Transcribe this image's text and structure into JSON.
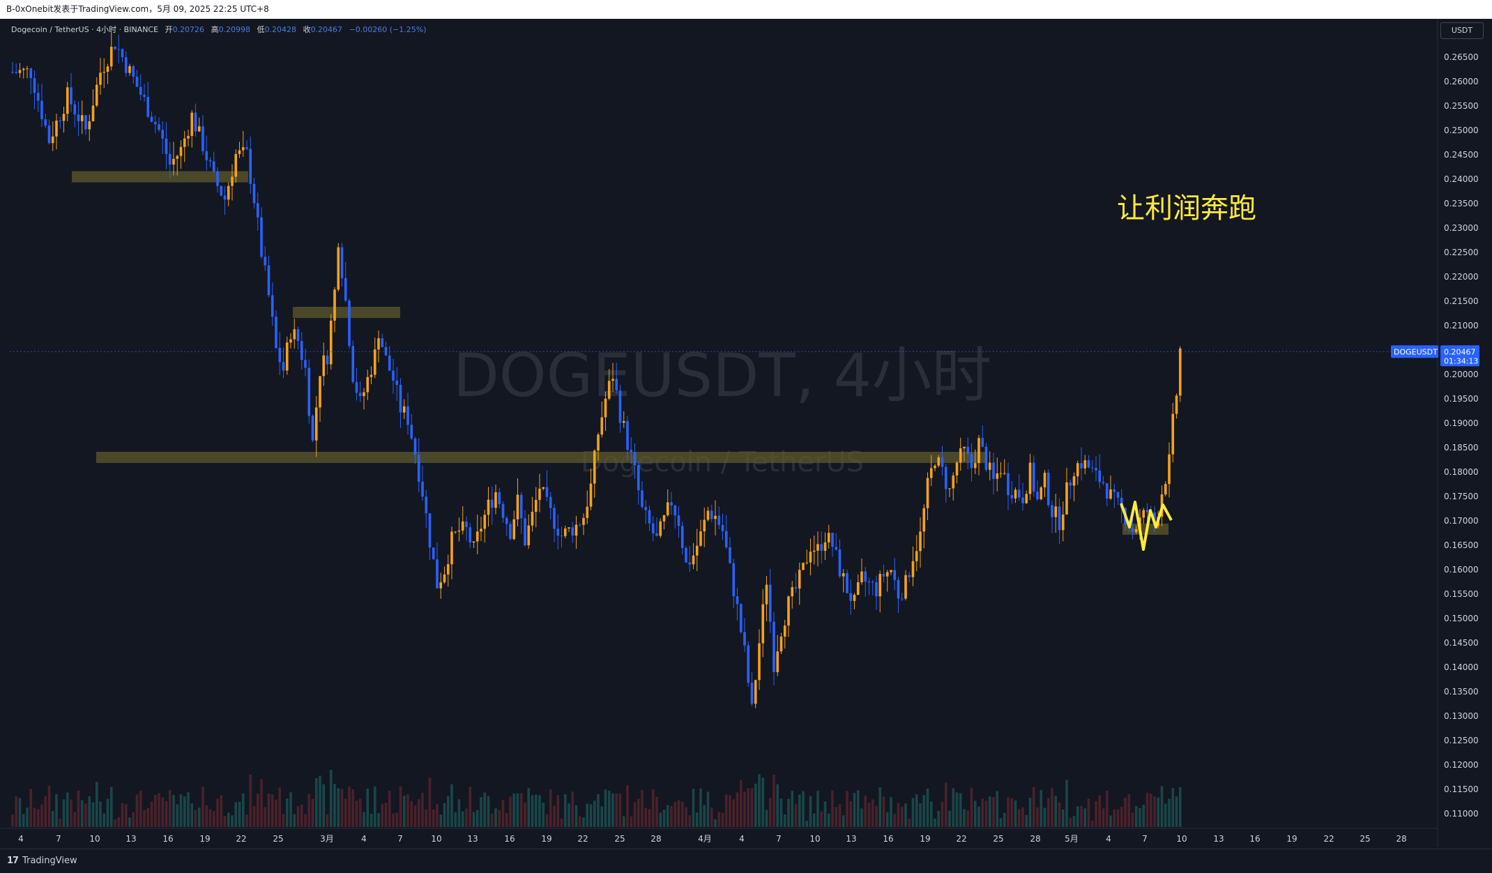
{
  "header": {
    "text": "B-0xOnebit发表于TradingView.com，5月 09, 2025 22:25 UTC+8"
  },
  "legend": {
    "symbol": "Dogecoin / TetherUS · 4小时 · BINANCE",
    "open_label": "开",
    "open": "0.20726",
    "high_label": "高",
    "high": "0.20998",
    "low_label": "低",
    "low": "0.20428",
    "close_label": "收",
    "close": "0.20467",
    "change": "−0.00260 (−1.25%)"
  },
  "currency": "USDT",
  "watermark": {
    "line1": "DOGEUSDT, 4小时",
    "line2": "Dogecoin / TetherUS"
  },
  "annotation": {
    "text": "让利润奔跑"
  },
  "current_price": {
    "symbol": "DOGEUSDT",
    "price": "0.20467",
    "countdown": "01:34:13"
  },
  "footer": {
    "brand": "TradingView"
  },
  "colors": {
    "up": "#f7a21b",
    "down": "#2962ff",
    "background": "#131722",
    "zone": "#5d5a2c",
    "annotation": "#ffeb3b"
  },
  "chart_data": {
    "type": "candlestick",
    "symbol": "DOGEUSDT",
    "interval": "4小时",
    "exchange": "BINANCE",
    "ylim": [
      0.1075,
      0.2695
    ],
    "y_ticks": [
      "0.26500",
      "0.26000",
      "0.25500",
      "0.25000",
      "0.24500",
      "0.24000",
      "0.23500",
      "0.23000",
      "0.22500",
      "0.22000",
      "0.21500",
      "0.21000",
      "0.20500",
      "0.20000",
      "0.19500",
      "0.19000",
      "0.18500",
      "0.18000",
      "0.17500",
      "0.17000",
      "0.16500",
      "0.16000",
      "0.15500",
      "0.15000",
      "0.14500",
      "0.14000",
      "0.13500",
      "0.13000",
      "0.12500",
      "0.12000",
      "0.11500",
      "0.11000"
    ],
    "x_ticks": [
      "4",
      "7",
      "10",
      "13",
      "16",
      "19",
      "22",
      "25",
      "3月",
      "4",
      "7",
      "10",
      "13",
      "16",
      "19",
      "22",
      "25",
      "28",
      "4月",
      "4",
      "7",
      "10",
      "13",
      "16",
      "19",
      "22",
      "25",
      "28",
      "5月",
      "4",
      "7",
      "10",
      "13",
      "16",
      "19",
      "22",
      "25",
      "28"
    ],
    "price_path": [
      [
        0,
        0.262
      ],
      [
        5,
        0.262
      ],
      [
        10,
        0.248
      ],
      [
        15,
        0.257
      ],
      [
        20,
        0.25
      ],
      [
        24,
        0.262
      ],
      [
        28,
        0.268
      ],
      [
        32,
        0.262
      ],
      [
        36,
        0.256
      ],
      [
        40,
        0.25
      ],
      [
        43,
        0.243
      ],
      [
        46,
        0.246
      ],
      [
        49,
        0.253
      ],
      [
        52,
        0.247
      ],
      [
        55,
        0.24
      ],
      [
        58,
        0.236
      ],
      [
        61,
        0.245
      ],
      [
        64,
        0.245
      ],
      [
        66,
        0.236
      ],
      [
        68,
        0.225
      ],
      [
        70,
        0.216
      ],
      [
        72,
        0.205
      ],
      [
        74,
        0.201
      ],
      [
        76,
        0.209
      ],
      [
        78,
        0.207
      ],
      [
        80,
        0.201
      ],
      [
        82,
        0.186
      ],
      [
        84,
        0.201
      ],
      [
        86,
        0.204
      ],
      [
        88,
        0.217
      ],
      [
        89,
        0.228
      ],
      [
        91,
        0.215
      ],
      [
        93,
        0.2
      ],
      [
        95,
        0.194
      ],
      [
        97,
        0.199
      ],
      [
        99,
        0.204
      ],
      [
        100,
        0.209
      ],
      [
        102,
        0.203
      ],
      [
        104,
        0.199
      ],
      [
        106,
        0.193
      ],
      [
        108,
        0.191
      ],
      [
        110,
        0.184
      ],
      [
        112,
        0.176
      ],
      [
        114,
        0.166
      ],
      [
        116,
        0.157
      ],
      [
        118,
        0.16
      ],
      [
        120,
        0.166
      ],
      [
        122,
        0.168
      ],
      [
        124,
        0.168
      ],
      [
        126,
        0.164
      ],
      [
        128,
        0.169
      ],
      [
        130,
        0.173
      ],
      [
        132,
        0.176
      ],
      [
        134,
        0.172
      ],
      [
        136,
        0.168
      ],
      [
        138,
        0.174
      ],
      [
        140,
        0.166
      ],
      [
        142,
        0.171
      ],
      [
        144,
        0.177
      ],
      [
        146,
        0.173
      ],
      [
        148,
        0.17
      ],
      [
        150,
        0.167
      ],
      [
        152,
        0.168
      ],
      [
        154,
        0.169
      ],
      [
        156,
        0.171
      ],
      [
        158,
        0.177
      ],
      [
        160,
        0.188
      ],
      [
        162,
        0.195
      ],
      [
        164,
        0.2
      ],
      [
        166,
        0.192
      ],
      [
        168,
        0.186
      ],
      [
        170,
        0.18
      ],
      [
        172,
        0.172
      ],
      [
        174,
        0.169
      ],
      [
        176,
        0.166
      ],
      [
        178,
        0.17
      ],
      [
        180,
        0.174
      ],
      [
        182,
        0.17
      ],
      [
        184,
        0.161
      ],
      [
        186,
        0.163
      ],
      [
        188,
        0.167
      ],
      [
        190,
        0.172
      ],
      [
        192,
        0.171
      ],
      [
        194,
        0.168
      ],
      [
        196,
        0.16
      ],
      [
        198,
        0.152
      ],
      [
        200,
        0.143
      ],
      [
        202,
        0.131
      ],
      [
        204,
        0.145
      ],
      [
        206,
        0.158
      ],
      [
        208,
        0.141
      ],
      [
        210,
        0.148
      ],
      [
        212,
        0.153
      ],
      [
        214,
        0.156
      ],
      [
        216,
        0.16
      ],
      [
        218,
        0.165
      ],
      [
        220,
        0.164
      ],
      [
        222,
        0.167
      ],
      [
        224,
        0.165
      ],
      [
        226,
        0.16
      ],
      [
        228,
        0.156
      ],
      [
        230,
        0.153
      ],
      [
        232,
        0.158
      ],
      [
        234,
        0.157
      ],
      [
        236,
        0.156
      ],
      [
        238,
        0.159
      ],
      [
        240,
        0.16
      ],
      [
        242,
        0.155
      ],
      [
        244,
        0.157
      ],
      [
        246,
        0.163
      ],
      [
        248,
        0.167
      ],
      [
        250,
        0.177
      ],
      [
        252,
        0.183
      ],
      [
        254,
        0.18
      ],
      [
        256,
        0.176
      ],
      [
        258,
        0.182
      ],
      [
        260,
        0.184
      ],
      [
        262,
        0.181
      ],
      [
        264,
        0.186
      ],
      [
        266,
        0.182
      ],
      [
        268,
        0.178
      ],
      [
        270,
        0.181
      ],
      [
        272,
        0.177
      ],
      [
        274,
        0.176
      ],
      [
        276,
        0.175
      ],
      [
        278,
        0.18
      ],
      [
        280,
        0.174
      ],
      [
        282,
        0.178
      ],
      [
        284,
        0.172
      ],
      [
        286,
        0.17
      ],
      [
        288,
        0.176
      ],
      [
        290,
        0.181
      ],
      [
        292,
        0.182
      ],
      [
        294,
        0.181
      ],
      [
        296,
        0.179
      ],
      [
        298,
        0.178
      ],
      [
        300,
        0.175
      ],
      [
        302,
        0.173
      ],
      [
        304,
        0.171
      ],
      [
        306,
        0.168
      ],
      [
        308,
        0.17
      ],
      [
        310,
        0.172
      ],
      [
        312,
        0.169
      ],
      [
        314,
        0.176
      ],
      [
        316,
        0.182
      ],
      [
        317,
        0.19
      ],
      [
        318,
        0.196
      ],
      [
        319,
        0.205
      ],
      [
        320,
        0.207
      ],
      [
        321,
        0.205
      ]
    ],
    "zones": [
      {
        "price": 0.2405,
        "start_label": "7",
        "end_label": "25"
      },
      {
        "price": 0.2127,
        "start_label": "25",
        "end_label": "7"
      },
      {
        "price": 0.183,
        "start_label": "10",
        "end_label": "22"
      },
      {
        "price": 0.1683,
        "start_label": "4",
        "end_label": "7"
      }
    ],
    "last_price": 0.20467
  }
}
